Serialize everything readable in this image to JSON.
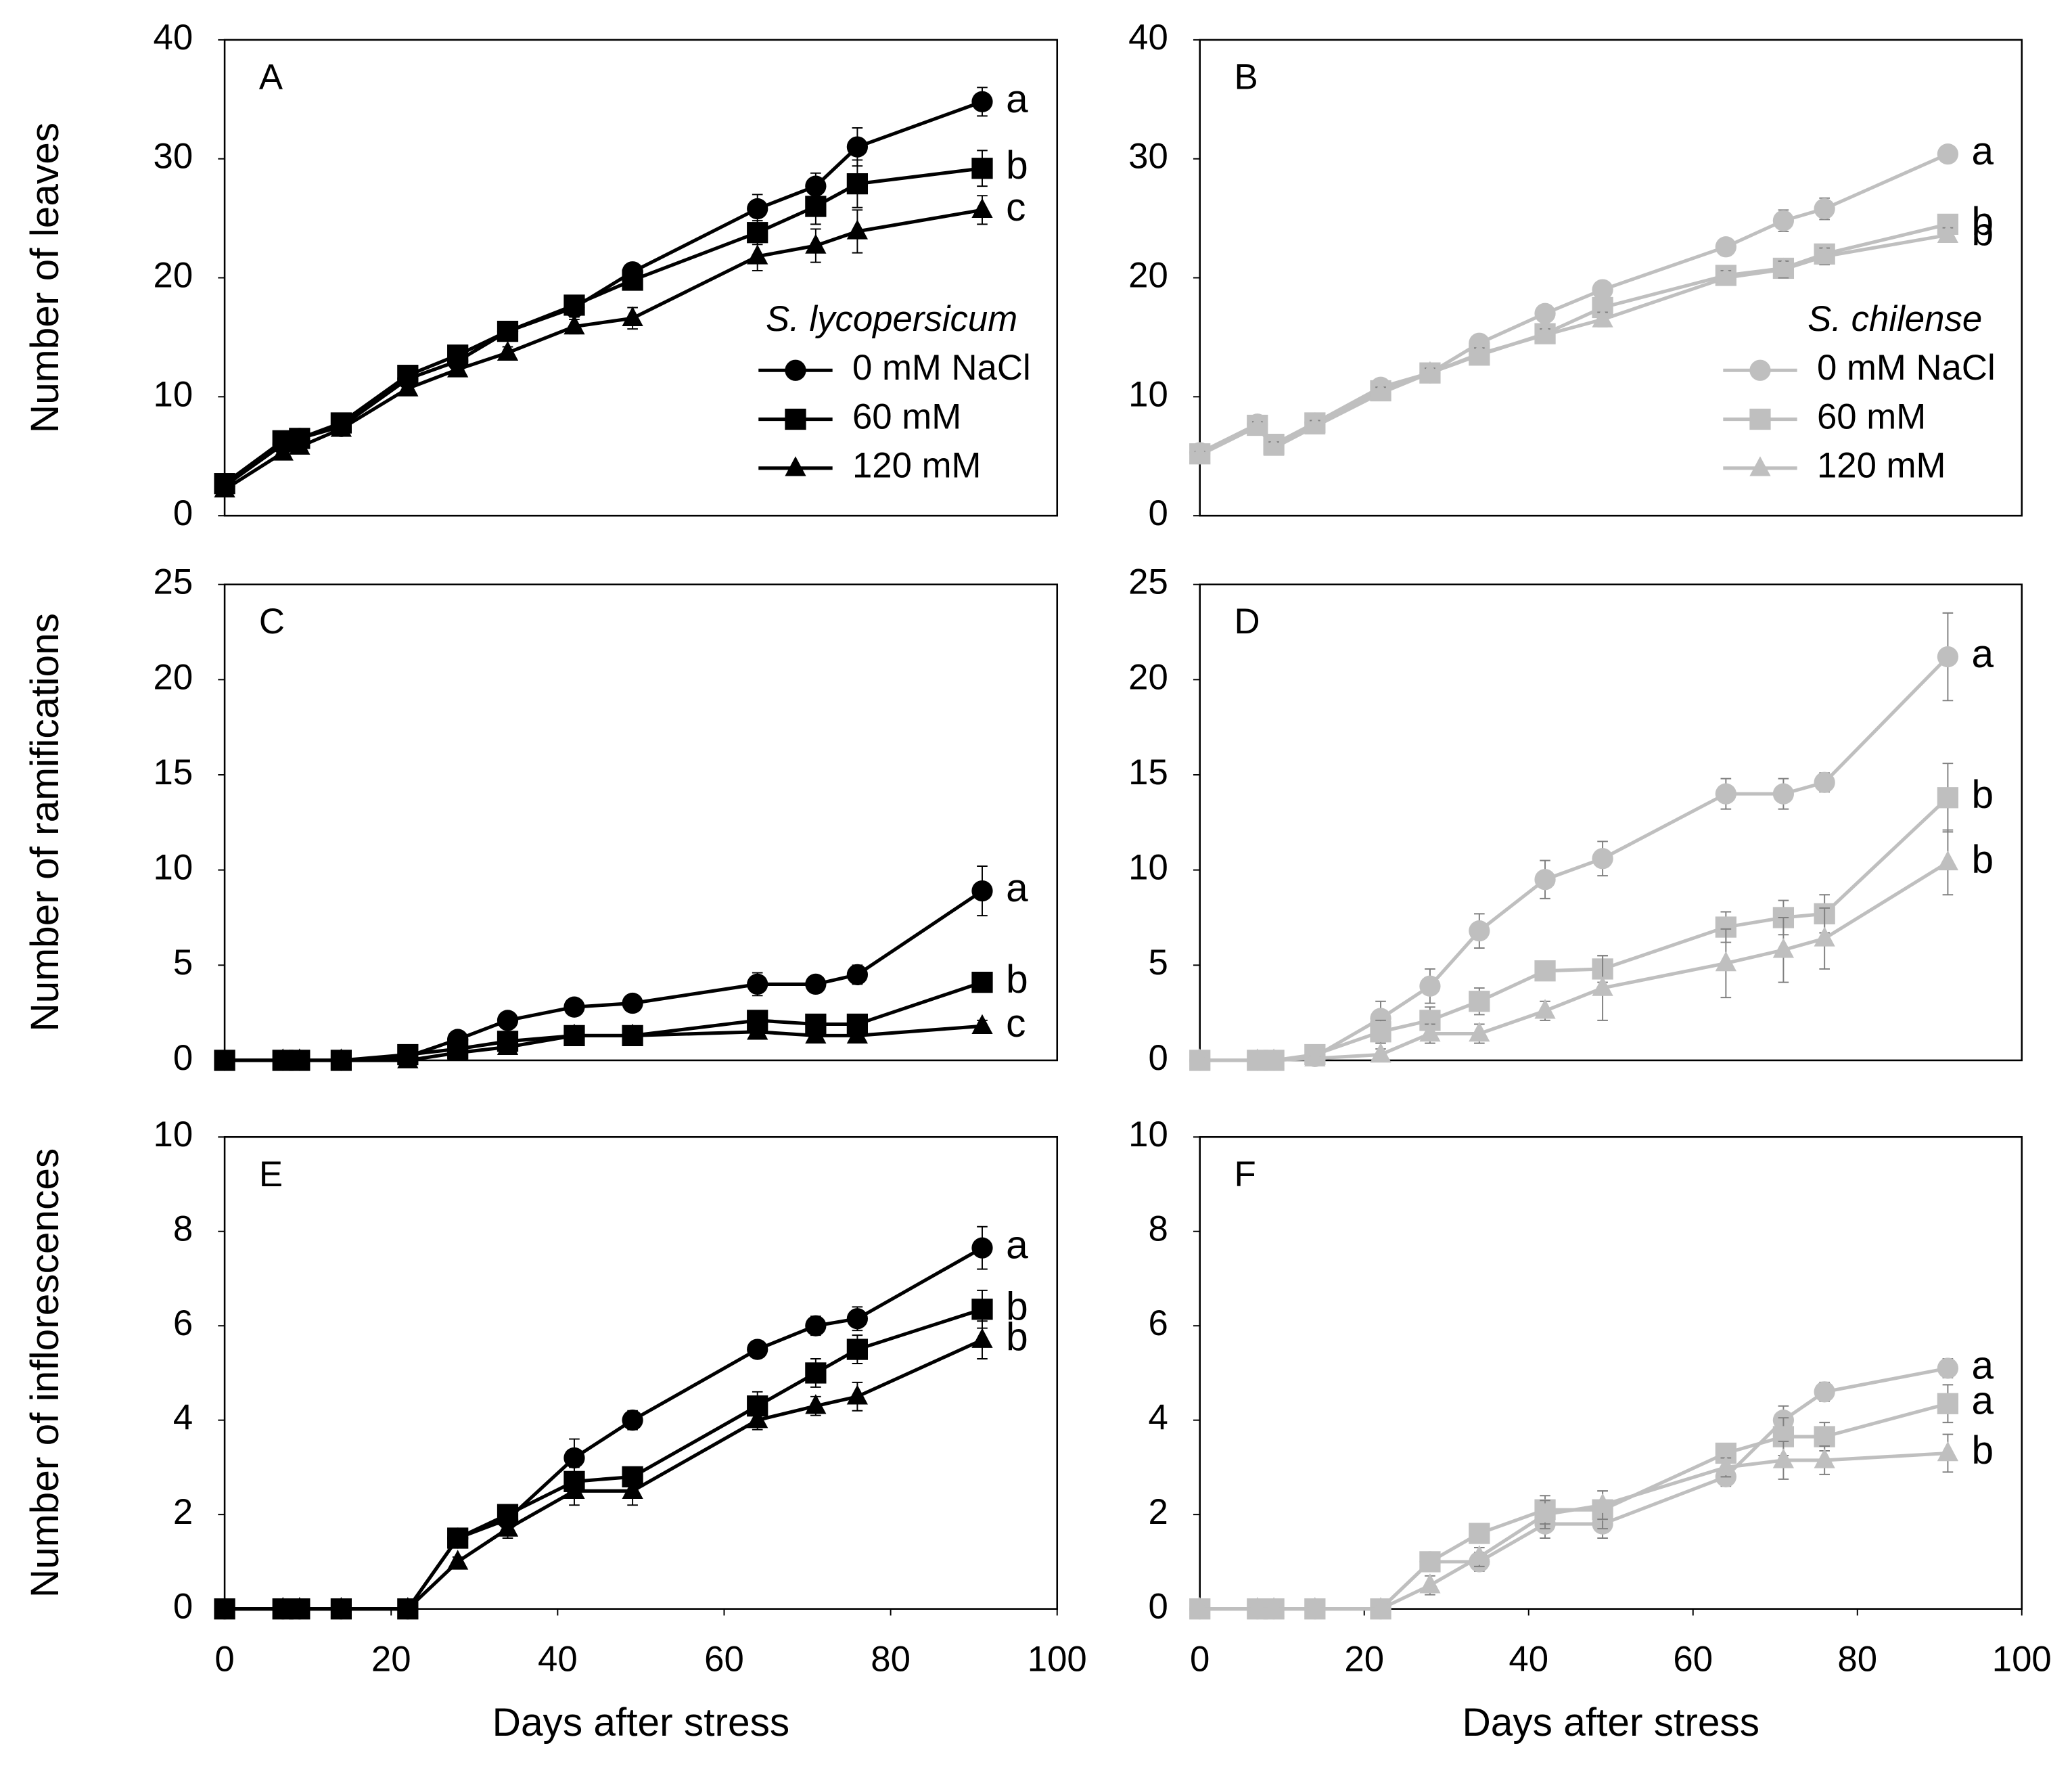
{
  "chart_data": [
    {
      "type": "line",
      "panel_label": "A",
      "ylabel": "Number of leaves",
      "legend_title": "S. lycopersicum",
      "x": [
        0,
        7,
        9,
        14,
        22,
        28,
        34,
        42,
        49,
        64,
        71,
        76,
        91
      ],
      "xlim": [
        0,
        100
      ],
      "ylim": [
        0,
        40
      ],
      "yticks": [
        0,
        10,
        20,
        30,
        40
      ],
      "series": [
        {
          "name": "0 mM NaCl",
          "color": "#000000",
          "marker": "circle",
          "letter": "a",
          "values": [
            2.5,
            6,
            6.5,
            7.5,
            11.5,
            13,
            15.5,
            17.5,
            20.5,
            25.8,
            27.7,
            31,
            34.8
          ],
          "errors": [
            0.3,
            0.5,
            0.5,
            0.5,
            0.6,
            0.6,
            0.5,
            0.8,
            0.6,
            1.2,
            1.1,
            1.6,
            1.2
          ]
        },
        {
          "name": "60 mM",
          "color": "#000000",
          "marker": "square",
          "letter": "b",
          "values": [
            2.7,
            6.3,
            6.5,
            7.8,
            11.8,
            13.5,
            15.5,
            17.7,
            19.8,
            23.8,
            26,
            27.9,
            29.2
          ],
          "errors": [
            0.3,
            0.5,
            0.5,
            0.5,
            0.6,
            0.6,
            0.5,
            0.8,
            0.6,
            1,
            1.5,
            2,
            1.5
          ]
        },
        {
          "name": "120 mM",
          "color": "#000000",
          "marker": "triangle",
          "letter": "c",
          "values": [
            2.2,
            5.3,
            5.8,
            7.3,
            10.7,
            12.3,
            13.7,
            15.9,
            16.6,
            21.8,
            22.7,
            23.9,
            25.7
          ],
          "errors": [
            0.3,
            0.5,
            0.5,
            0.5,
            0.5,
            0.5,
            0.5,
            0.6,
            0.9,
            1.2,
            1.4,
            1.8,
            1.2
          ]
        }
      ]
    },
    {
      "type": "line",
      "panel_label": "B",
      "legend_title": "S. chilense",
      "x": [
        0,
        7,
        9,
        14,
        22,
        28,
        34,
        42,
        49,
        64,
        71,
        76,
        91
      ],
      "xlim": [
        0,
        100
      ],
      "ylim": [
        0,
        40
      ],
      "yticks": [
        0,
        10,
        20,
        30,
        40
      ],
      "series": [
        {
          "name": "0 mM NaCl",
          "color": "#bfbfbf",
          "marker": "circle",
          "letter": "a",
          "values": [
            5.3,
            7.7,
            6,
            7.8,
            10.8,
            12,
            14.5,
            17,
            19,
            22.6,
            24.8,
            25.8,
            30.4
          ],
          "errors": [
            0.3,
            0.4,
            0.5,
            0.5,
            0.5,
            0.4,
            0.5,
            0.5,
            0.5,
            0.5,
            0.9,
            0.9,
            0.5
          ]
        },
        {
          "name": "60 mM",
          "color": "#bfbfbf",
          "marker": "square",
          "letter": "b",
          "values": [
            5.2,
            7.6,
            6,
            7.8,
            10.5,
            12,
            13.5,
            15.3,
            17.5,
            20.2,
            20.8,
            22,
            24.5
          ],
          "errors": [
            0.3,
            0.4,
            0.5,
            0.5,
            0.5,
            0.4,
            0.5,
            0.5,
            0.6,
            0.6,
            0.7,
            0.7,
            0.8
          ]
        },
        {
          "name": "120 mM",
          "color": "#bfbfbf",
          "marker": "triangle",
          "letter": "b",
          "values": [
            5.1,
            7.5,
            5.7,
            7.5,
            10.3,
            12,
            13.6,
            15.2,
            16.5,
            20,
            20.7,
            21.8,
            23.6
          ],
          "errors": [
            0.3,
            0.4,
            0.5,
            0.5,
            0.5,
            0.4,
            0.5,
            0.5,
            0.6,
            0.6,
            0.7,
            0.7,
            0.6
          ]
        }
      ]
    },
    {
      "type": "line",
      "panel_label": "C",
      "ylabel": "Number of ramifications",
      "x": [
        0,
        7,
        9,
        14,
        22,
        28,
        34,
        42,
        49,
        64,
        71,
        76,
        91
      ],
      "xlim": [
        0,
        100
      ],
      "ylim": [
        0,
        25
      ],
      "yticks": [
        0,
        5,
        10,
        15,
        20,
        25
      ],
      "series": [
        {
          "color": "#000000",
          "marker": "circle",
          "letter": "a",
          "values": [
            0,
            0,
            0,
            0,
            0.2,
            1.1,
            2.1,
            2.8,
            3,
            4,
            4,
            4.5,
            8.9
          ],
          "errors": [
            0,
            0,
            0,
            0,
            0.2,
            0.3,
            0.3,
            0.3,
            0.3,
            0.6,
            0.4,
            0.5,
            1.3
          ]
        },
        {
          "color": "#000000",
          "marker": "square",
          "letter": "b",
          "values": [
            0,
            0,
            0,
            0,
            0.3,
            0.6,
            1,
            1.3,
            1.3,
            2.1,
            1.9,
            1.9,
            4.1
          ],
          "errors": [
            0,
            0,
            0,
            0,
            0.2,
            0.2,
            0.3,
            0.3,
            0.3,
            0.4,
            0.4,
            0.4,
            0.5
          ]
        },
        {
          "color": "#000000",
          "marker": "triangle",
          "letter": "c",
          "values": [
            0,
            0,
            0,
            0,
            0,
            0.4,
            0.7,
            1.3,
            1.3,
            1.5,
            1.3,
            1.3,
            1.8
          ],
          "errors": [
            0,
            0,
            0,
            0,
            0.1,
            0.2,
            0.3,
            0.3,
            0.3,
            0.3,
            0.3,
            0.3,
            0.3
          ]
        }
      ]
    },
    {
      "type": "line",
      "panel_label": "D",
      "x": [
        0,
        7,
        9,
        14,
        22,
        28,
        34,
        42,
        49,
        64,
        71,
        76,
        91
      ],
      "xlim": [
        0,
        100
      ],
      "ylim": [
        0,
        25
      ],
      "yticks": [
        0,
        5,
        10,
        15,
        20,
        25
      ],
      "series": [
        {
          "color": "#bfbfbf",
          "marker": "circle",
          "letter": "a",
          "values": [
            0,
            0,
            0,
            0.2,
            2.2,
            3.9,
            6.8,
            9.5,
            10.6,
            14,
            14,
            14.6,
            21.2
          ],
          "errors": [
            0,
            0,
            0,
            0.2,
            0.9,
            0.9,
            0.9,
            1,
            0.9,
            0.8,
            0.8,
            0.5,
            2.3
          ]
        },
        {
          "color": "#bfbfbf",
          "marker": "square",
          "letter": "b",
          "values": [
            0,
            0,
            0,
            0.3,
            1.5,
            2.1,
            3.1,
            4.7,
            4.8,
            7,
            7.5,
            7.7,
            13.8
          ],
          "errors": [
            0,
            0,
            0,
            0.2,
            0.6,
            0.7,
            0.7,
            0.5,
            0.7,
            0.8,
            0.9,
            1,
            1.8
          ]
        },
        {
          "color": "#bfbfbf",
          "marker": "triangle",
          "letter": "b",
          "values": [
            0,
            0,
            0,
            0.1,
            0.3,
            1.4,
            1.4,
            2.6,
            3.8,
            5.1,
            5.8,
            6.4,
            10.4
          ],
          "errors": [
            0,
            0,
            0,
            0.1,
            0.3,
            0.5,
            0.5,
            0.5,
            1.7,
            1.8,
            1.7,
            1.6,
            1.7
          ]
        }
      ]
    },
    {
      "type": "line",
      "panel_label": "E",
      "ylabel": "Number of inflorescences",
      "xlabel": "Days after stress",
      "x": [
        0,
        7,
        9,
        14,
        22,
        28,
        34,
        42,
        49,
        64,
        71,
        76,
        91
      ],
      "xlim": [
        0,
        100
      ],
      "xticks": [
        0,
        20,
        40,
        60,
        80,
        100
      ],
      "ylim": [
        0,
        10
      ],
      "yticks": [
        0,
        2,
        4,
        6,
        8,
        10
      ],
      "series": [
        {
          "color": "#000000",
          "marker": "circle",
          "letter": "a",
          "values": [
            0,
            0,
            0,
            0,
            0,
            1.5,
            1.9,
            3.2,
            4,
            5.5,
            6,
            6.15,
            7.65
          ],
          "errors": [
            0,
            0,
            0,
            0,
            0,
            0.1,
            0.2,
            0.4,
            0.2,
            0.15,
            0.2,
            0.25,
            0.45
          ]
        },
        {
          "color": "#000000",
          "marker": "square",
          "letter": "b",
          "values": [
            0,
            0,
            0,
            0,
            0,
            1.5,
            2,
            2.7,
            2.8,
            4.3,
            5,
            5.5,
            6.35
          ],
          "errors": [
            0,
            0,
            0,
            0,
            0,
            0.1,
            0.2,
            0.3,
            0.2,
            0.3,
            0.3,
            0.3,
            0.4
          ]
        },
        {
          "color": "#000000",
          "marker": "triangle",
          "letter": "b",
          "values": [
            0,
            0,
            0,
            0,
            0,
            1,
            1.7,
            2.5,
            2.5,
            4,
            4.3,
            4.5,
            5.7
          ],
          "errors": [
            0,
            0,
            0,
            0,
            0,
            0.1,
            0.2,
            0.3,
            0.3,
            0.2,
            0.2,
            0.3,
            0.4
          ]
        }
      ]
    },
    {
      "type": "line",
      "panel_label": "F",
      "xlabel": "Days after stress",
      "x": [
        0,
        7,
        9,
        14,
        22,
        28,
        34,
        42,
        49,
        64,
        71,
        76,
        91
      ],
      "xlim": [
        0,
        100
      ],
      "xticks": [
        0,
        20,
        40,
        60,
        80,
        100
      ],
      "ylim": [
        0,
        10
      ],
      "yticks": [
        0,
        2,
        4,
        6,
        8,
        10
      ],
      "series": [
        {
          "color": "#bfbfbf",
          "marker": "circle",
          "letter": "a",
          "values": [
            0,
            0,
            0,
            0,
            0,
            1,
            1,
            1.8,
            1.8,
            2.8,
            4,
            4.6,
            5.1
          ],
          "errors": [
            0,
            0,
            0,
            0,
            0,
            0.2,
            0.2,
            0.3,
            0.3,
            0.2,
            0.3,
            0.2,
            0.2
          ]
        },
        {
          "color": "#bfbfbf",
          "marker": "square",
          "letter": "a",
          "values": [
            0,
            0,
            0,
            0,
            0,
            1,
            1.6,
            2.1,
            2.1,
            3.3,
            3.65,
            3.65,
            4.35
          ],
          "errors": [
            0,
            0,
            0,
            0,
            0,
            0.2,
            0.2,
            0.3,
            0.4,
            0.2,
            0.4,
            0.3,
            0.4
          ]
        },
        {
          "color": "#bfbfbf",
          "marker": "triangle",
          "letter": "b",
          "values": [
            0,
            0,
            0,
            0,
            0,
            0.5,
            1.1,
            2,
            2.2,
            3,
            3.15,
            3.15,
            3.3
          ],
          "errors": [
            0,
            0,
            0,
            0,
            0,
            0.2,
            0.2,
            0.3,
            0.3,
            0.2,
            0.4,
            0.3,
            0.4
          ]
        }
      ]
    }
  ]
}
